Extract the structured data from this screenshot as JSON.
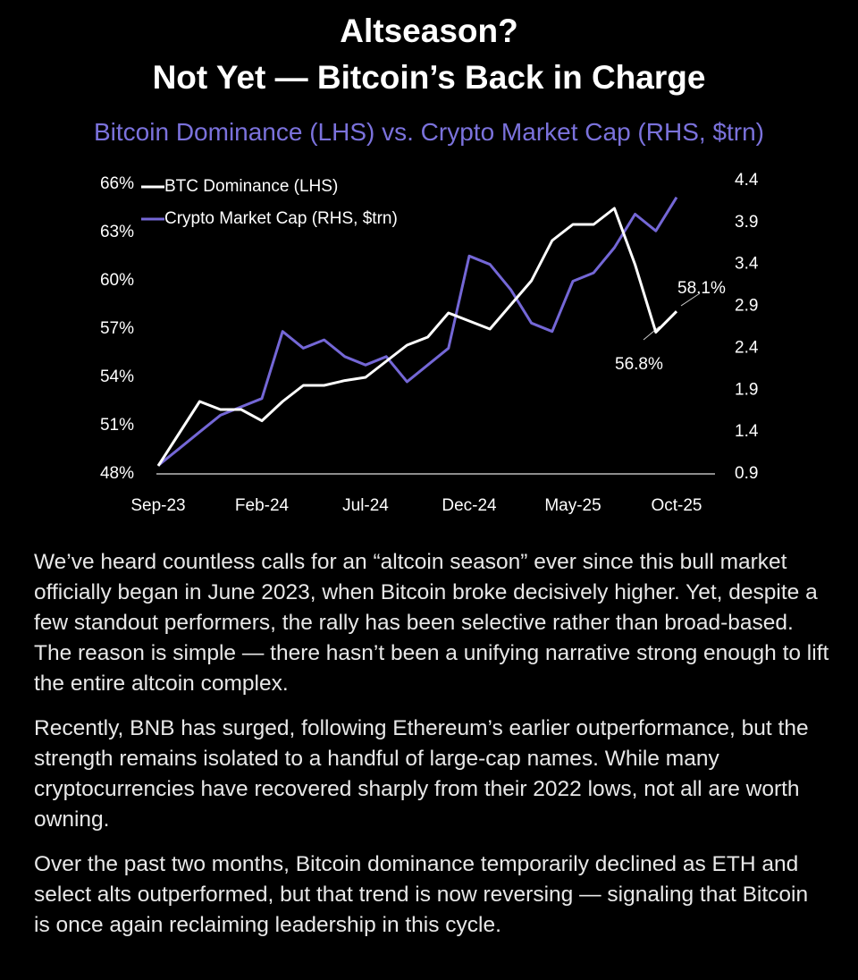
{
  "header": {
    "title_line1": "Altseason?",
    "title_line2": "Not Yet — Bitcoin’s Back in Charge",
    "subtitle": "Bitcoin Dominance (LHS) vs. Crypto Market Cap (RHS, $trn)"
  },
  "chart_data": {
    "type": "line",
    "categories": [
      "Sep-23",
      null,
      null,
      null,
      null,
      "Feb-24",
      null,
      null,
      null,
      null,
      "Jul-24",
      null,
      null,
      null,
      null,
      "Dec-24",
      null,
      null,
      null,
      null,
      "May-25",
      null,
      null,
      null,
      null,
      "Oct-25"
    ],
    "series": [
      {
        "name": "BTC Dominance (LHS)",
        "color": "#ffffff",
        "axis": "y",
        "values": [
          48.5,
          50.5,
          52.5,
          52,
          52,
          51.3,
          52.5,
          53.5,
          53.5,
          53.8,
          54,
          55,
          56,
          56.5,
          58,
          57.5,
          57,
          58.5,
          60,
          62.5,
          63.5,
          63.5,
          64.5,
          61,
          56.8,
          58.1
        ]
      },
      {
        "name": "Crypto Market Cap (RHS, $trn)",
        "color": "#7467d6",
        "axis": "y2",
        "values": [
          1.0,
          1.2,
          1.4,
          1.6,
          1.7,
          1.8,
          2.6,
          2.4,
          2.5,
          2.3,
          2.2,
          2.3,
          2.0,
          2.2,
          2.4,
          3.5,
          3.4,
          3.1,
          2.7,
          2.6,
          3.2,
          3.3,
          3.6,
          4.0,
          3.8,
          4.2
        ]
      }
    ],
    "ylim": [
      48,
      66
    ],
    "yticks": [
      {
        "value": 48,
        "label": "48%"
      },
      {
        "value": 51,
        "label": "51%"
      },
      {
        "value": 54,
        "label": "54%"
      },
      {
        "value": 57,
        "label": "57%"
      },
      {
        "value": 60,
        "label": "60%"
      },
      {
        "value": 63,
        "label": "63%"
      },
      {
        "value": 66,
        "label": "66%"
      }
    ],
    "y2lim": [
      0.9,
      4.4
    ],
    "y2ticks": [
      0.9,
      1.4,
      1.9,
      2.4,
      2.9,
      3.4,
      3.9,
      4.4
    ],
    "legend": "top-left",
    "annotations": [
      {
        "text": "58.1%"
      },
      {
        "text": "56.8%"
      }
    ]
  },
  "paragraphs": [
    "We’ve heard countless calls for an “altcoin season” ever since this bull market officially began in June 2023, when Bitcoin broke decisively higher. Yet, despite a few standout performers, the rally has been selective rather than broad-based. The reason is simple — there hasn’t been a unifying narrative strong enough to lift the entire altcoin complex.",
    "Recently, BNB has surged, following Ethereum’s earlier outperformance, but the strength remains isolated to a handful of large-cap names. While many cryptocurrencies have recovered sharply from their 2022 lows, not all are worth owning.",
    "Over the past two months, Bitcoin dominance temporarily declined as ETH and select alts outperformed, but that trend is now reversing — signaling that Bitcoin is once again reclaiming leadership in this cycle."
  ]
}
